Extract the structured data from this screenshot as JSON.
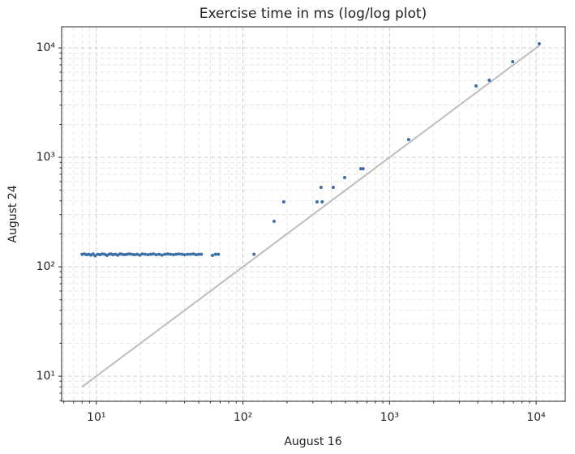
{
  "chart_data": {
    "type": "scatter",
    "title": "Exercise time in ms (log/log plot)",
    "x_label": "August 16",
    "y_label": "August 24",
    "x_scale": "log",
    "y_scale": "log",
    "grid": true,
    "xlim": [
      5.8,
      15800
    ],
    "ylim": [
      5.9,
      15600
    ],
    "xticks": [
      {
        "value": 10,
        "label": "10¹"
      },
      {
        "value": 100,
        "label": "10²"
      },
      {
        "value": 1000,
        "label": "10³"
      },
      {
        "value": 10000,
        "label": "10⁴"
      }
    ],
    "yticks": [
      {
        "value": 10,
        "label": "10¹"
      },
      {
        "value": 100,
        "label": "10²"
      },
      {
        "value": 1000,
        "label": "10³"
      },
      {
        "value": 10000,
        "label": "10⁴"
      }
    ],
    "xminorticks": [
      6,
      7,
      8,
      9,
      20,
      30,
      40,
      50,
      60,
      70,
      80,
      90,
      200,
      300,
      400,
      500,
      600,
      700,
      800,
      900,
      2000,
      3000,
      4000,
      5000,
      6000,
      7000,
      8000,
      9000
    ],
    "yminorticks": [
      6,
      7,
      8,
      9,
      20,
      30,
      40,
      50,
      60,
      70,
      80,
      90,
      200,
      300,
      400,
      500,
      600,
      700,
      800,
      900,
      2000,
      3000,
      4000,
      5000,
      6000,
      7000,
      8000,
      9000
    ],
    "series": [
      {
        "type": "line",
        "color": "#bdbdbd",
        "x": [
          8,
          10500
        ],
        "y": [
          8,
          10500
        ]
      },
      {
        "type": "scatter",
        "color": "#3b6fa6",
        "x": [
          8.0,
          8.3,
          8.6,
          8.9,
          9.2,
          9.5,
          9.8,
          10.2,
          10.6,
          11,
          11.4,
          11.8,
          12.2,
          12.6,
          13,
          13.5,
          14,
          14.5,
          15,
          15.6,
          16.2,
          16.8,
          17.5,
          18.2,
          19,
          19.8,
          20.6,
          21.5,
          22.5,
          23.5,
          24.5,
          25.6,
          26.8,
          28,
          29.3,
          30.6,
          32,
          33.5,
          35,
          36.6,
          38.3,
          40,
          42,
          44,
          46,
          48,
          50,
          52,
          62,
          65,
          68,
          119,
          163,
          190,
          320,
          341,
          347,
          413,
          494,
          637,
          661,
          1350,
          3890,
          4790,
          6920,
          10500
        ],
        "y": [
          130,
          131,
          129,
          130,
          128,
          131,
          126,
          130,
          129,
          131,
          130,
          127,
          130,
          131,
          129,
          130,
          128,
          131,
          130,
          129,
          130,
          131,
          130,
          129,
          130,
          128,
          131,
          130,
          129,
          130,
          131,
          129,
          130,
          128,
          130,
          131,
          130,
          129,
          130,
          131,
          130,
          129,
          130,
          130,
          131,
          129,
          130,
          130,
          127,
          130,
          130,
          130,
          260,
          392,
          392,
          532,
          392,
          532,
          653,
          787,
          787,
          1455,
          4490,
          5060,
          7480,
          10900
        ]
      }
    ]
  }
}
